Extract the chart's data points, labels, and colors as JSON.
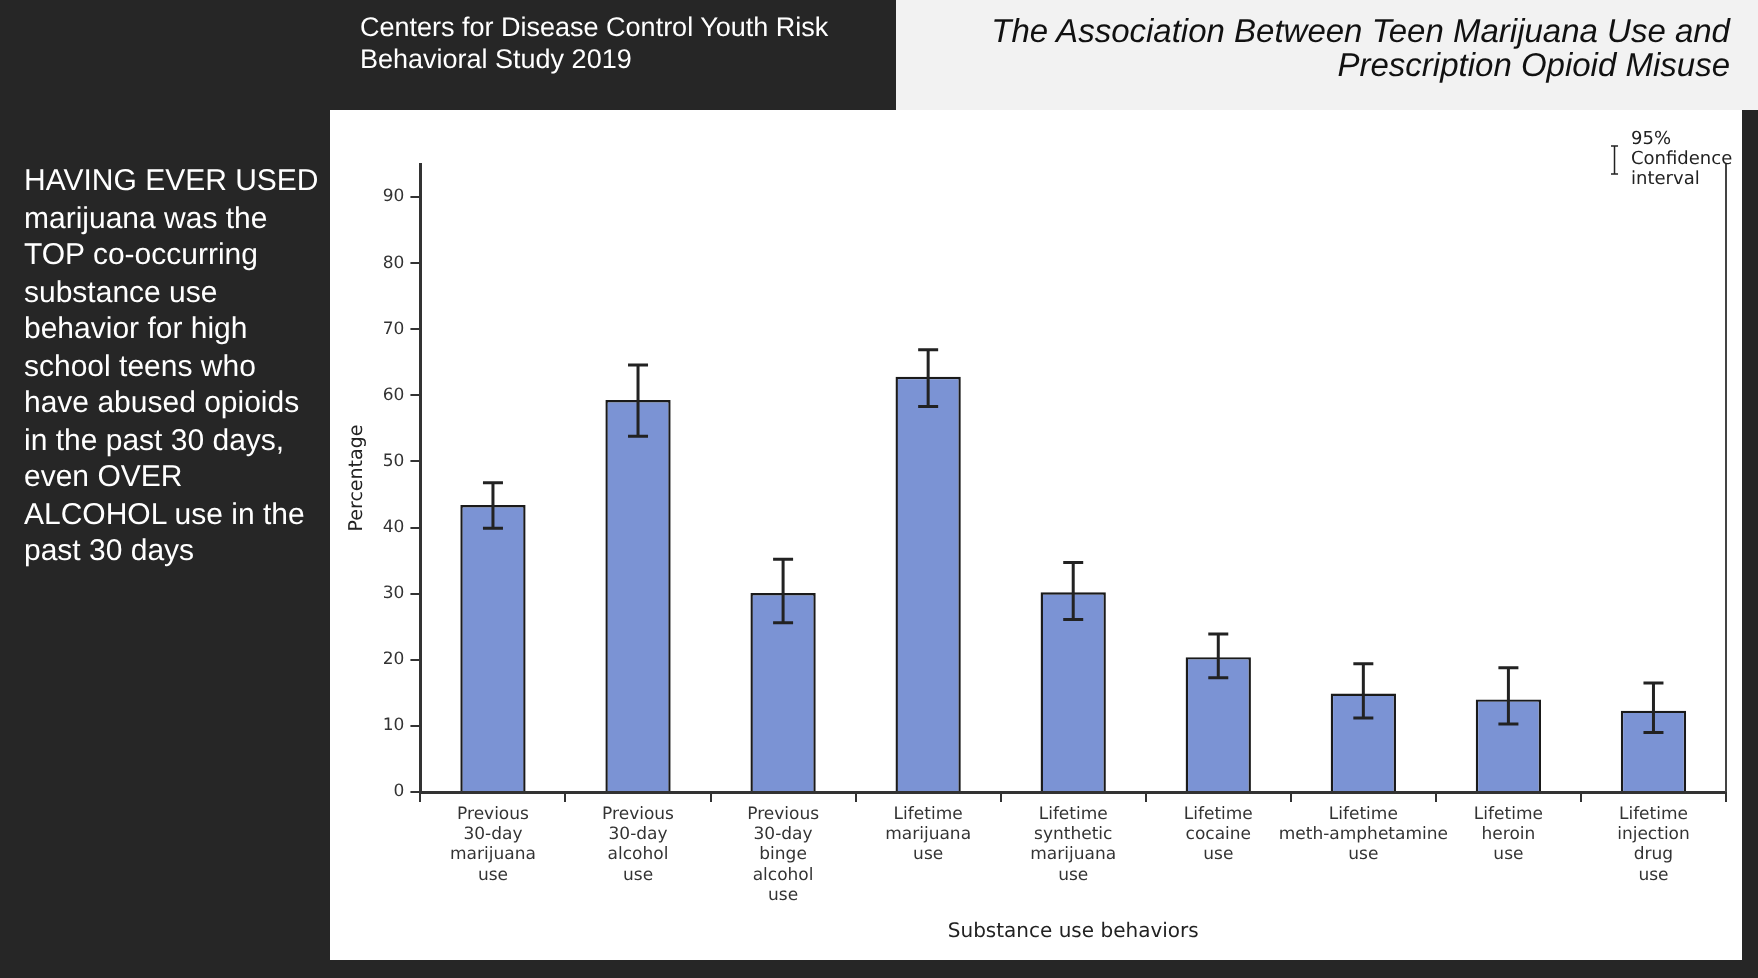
{
  "chart_data": {
    "type": "bar",
    "title": "The Association Between Teen Marijuana Use and Prescription Opioid Misuse",
    "subtitle": "Centers for Disease Control Youth Risk Behavioral Study 2019",
    "xlabel": "Substance use behaviors",
    "ylabel": "Percentage",
    "categories": [
      "Previous 30-day marijuana use",
      "Previous 30-day alcohol use",
      "Previous 30-day binge alcohol use",
      "Lifetime marijuana use",
      "Lifetime synthetic marijuana use",
      "Lifetime cocaine use",
      "Lifetime meth-amphetamine use",
      "Lifetime heroin use",
      "Lifetime injection drug use"
    ],
    "values": [
      43.4,
      59.3,
      30.1,
      62.8,
      30.2,
      20.4,
      14.9,
      14.0,
      12.3
    ],
    "errors": [
      [
        39.9,
        46.8
      ],
      [
        53.8,
        64.6
      ],
      [
        25.6,
        35.2
      ],
      [
        58.3,
        66.9
      ],
      [
        26.1,
        34.7
      ],
      [
        17.3,
        23.9
      ],
      [
        11.2,
        19.4
      ],
      [
        10.3,
        18.8
      ],
      [
        9.0,
        16.5
      ]
    ],
    "color": "#7b93d4",
    "ylim": [
      0,
      95
    ],
    "yticks": [
      0,
      10,
      20,
      30,
      40,
      50,
      60,
      70,
      80,
      90
    ],
    "grid": false,
    "legend": false,
    "annotations": [
      "HAVING EVER USED marijuana was the TOP co-occurring substance use behavior for high school teens who have abused opioids in the past 30 days, even OVER ALCOHOL use in the past 30 days",
      "95% Confidence interval"
    ]
  }
}
